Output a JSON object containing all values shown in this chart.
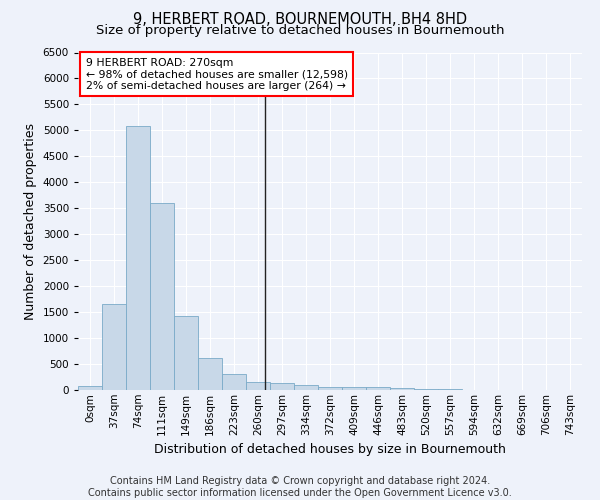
{
  "title": "9, HERBERT ROAD, BOURNEMOUTH, BH4 8HD",
  "subtitle": "Size of property relative to detached houses in Bournemouth",
  "xlabel": "Distribution of detached houses by size in Bournemouth",
  "ylabel": "Number of detached properties",
  "footer_line1": "Contains HM Land Registry data © Crown copyright and database right 2024.",
  "footer_line2": "Contains public sector information licensed under the Open Government Licence v3.0.",
  "bar_labels": [
    "0sqm",
    "37sqm",
    "74sqm",
    "111sqm",
    "149sqm",
    "186sqm",
    "223sqm",
    "260sqm",
    "297sqm",
    "334sqm",
    "372sqm",
    "409sqm",
    "446sqm",
    "483sqm",
    "520sqm",
    "557sqm",
    "594sqm",
    "632sqm",
    "669sqm",
    "706sqm",
    "743sqm"
  ],
  "bar_values": [
    75,
    1650,
    5075,
    3600,
    1420,
    620,
    300,
    150,
    130,
    90,
    65,
    55,
    55,
    30,
    20,
    10,
    5,
    5,
    5,
    5,
    5
  ],
  "bar_color": "#c8d8e8",
  "bar_edgecolor": "#7aaac8",
  "vline_x": 7.3,
  "vline_color": "#222222",
  "annotation_text": "9 HERBERT ROAD: 270sqm\n← 98% of detached houses are smaller (12,598)\n2% of semi-detached houses are larger (264) →",
  "annotation_box_color": "white",
  "annotation_border_color": "red",
  "ylim": [
    0,
    6500
  ],
  "background_color": "#eef2fa",
  "grid_color": "#ffffff",
  "title_fontsize": 10.5,
  "subtitle_fontsize": 9.5,
  "axis_label_fontsize": 9,
  "tick_fontsize": 7.5,
  "footer_fontsize": 7
}
